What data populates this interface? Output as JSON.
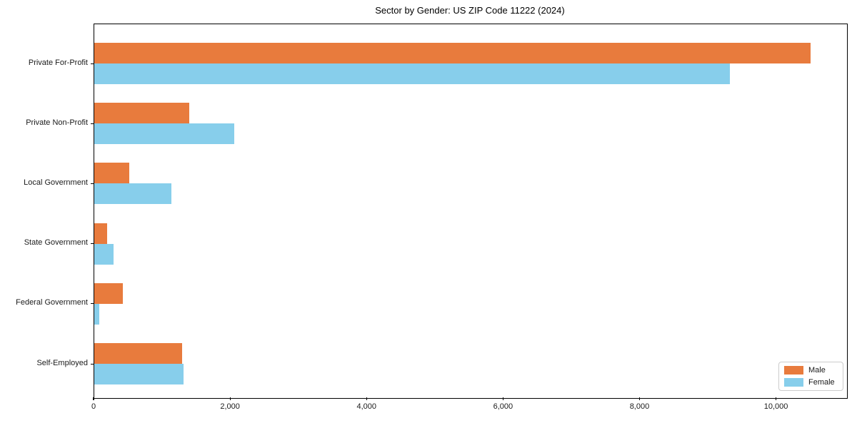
{
  "chart_data": {
    "type": "bar",
    "orientation": "horizontal",
    "title": "Sector by Gender: US ZIP Code 11222 (2024)",
    "categories": [
      "Private For-Profit",
      "Private Non-Profit",
      "Local Government",
      "State Government",
      "Federal Government",
      "Self-Employed"
    ],
    "series": [
      {
        "name": "Male",
        "color": "#E87B3D",
        "values": [
          10500,
          1390,
          510,
          185,
          420,
          1290
        ]
      },
      {
        "name": "Female",
        "color": "#87CEEB",
        "values": [
          9310,
          2050,
          1130,
          280,
          75,
          1310
        ]
      }
    ],
    "xlim": [
      0,
      11030
    ],
    "xticks": [
      0,
      2000,
      4000,
      6000,
      8000,
      10000
    ],
    "xtick_labels": [
      "0",
      "2,000",
      "4,000",
      "6,000",
      "8,000",
      "10,000"
    ],
    "xlabel": "",
    "ylabel": "",
    "legend_position": "lower right",
    "grid": false,
    "background_color": "#ffffff",
    "spine_color": "#000000"
  }
}
